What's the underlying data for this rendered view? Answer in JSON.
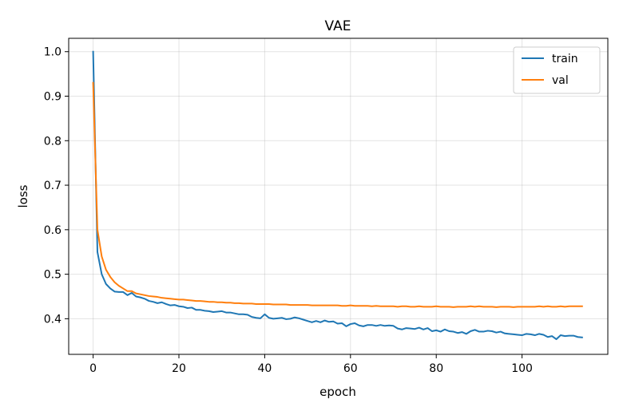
{
  "chart_data": {
    "type": "line",
    "title": "VAE",
    "xlabel": "epoch",
    "ylabel": "loss",
    "xlim": [
      -5.7,
      120
    ],
    "ylim": [
      0.32,
      1.03
    ],
    "xticks": [
      0,
      20,
      40,
      60,
      80,
      100
    ],
    "yticks": [
      0.4,
      0.5,
      0.6,
      0.7,
      0.8,
      0.9,
      1.0
    ],
    "grid": true,
    "legend_position": "top-right",
    "series": [
      {
        "name": "train",
        "color": "#1f77b4",
        "x": [
          0,
          1,
          2,
          3,
          4,
          5,
          6,
          7,
          8,
          9,
          10,
          11,
          12,
          13,
          14,
          15,
          16,
          17,
          18,
          19,
          20,
          21,
          22,
          23,
          24,
          25,
          26,
          27,
          28,
          29,
          30,
          31,
          32,
          33,
          34,
          35,
          36,
          37,
          38,
          39,
          40,
          41,
          42,
          43,
          44,
          45,
          46,
          47,
          48,
          49,
          50,
          51,
          52,
          53,
          54,
          55,
          56,
          57,
          58,
          59,
          60,
          61,
          62,
          63,
          64,
          65,
          66,
          67,
          68,
          69,
          70,
          71,
          72,
          73,
          74,
          75,
          76,
          77,
          78,
          79,
          80,
          81,
          82,
          83,
          84,
          85,
          86,
          87,
          88,
          89,
          90,
          91,
          92,
          93,
          94,
          95,
          96,
          97,
          98,
          99,
          100,
          101,
          102,
          103,
          104,
          105,
          106,
          107,
          108,
          109,
          110,
          111,
          112,
          113,
          114
        ],
        "values": [
          1.0,
          0.55,
          0.5,
          0.478,
          0.468,
          0.461,
          0.46,
          0.46,
          0.453,
          0.458,
          0.45,
          0.448,
          0.445,
          0.44,
          0.438,
          0.435,
          0.437,
          0.433,
          0.43,
          0.431,
          0.428,
          0.427,
          0.424,
          0.425,
          0.42,
          0.42,
          0.418,
          0.417,
          0.415,
          0.416,
          0.417,
          0.414,
          0.414,
          0.412,
          0.41,
          0.41,
          0.409,
          0.404,
          0.402,
          0.401,
          0.41,
          0.402,
          0.4,
          0.401,
          0.402,
          0.399,
          0.4,
          0.403,
          0.401,
          0.398,
          0.395,
          0.392,
          0.395,
          0.392,
          0.396,
          0.393,
          0.394,
          0.389,
          0.39,
          0.383,
          0.388,
          0.39,
          0.385,
          0.383,
          0.386,
          0.386,
          0.384,
          0.386,
          0.384,
          0.385,
          0.384,
          0.378,
          0.376,
          0.379,
          0.378,
          0.377,
          0.38,
          0.376,
          0.379,
          0.372,
          0.374,
          0.371,
          0.376,
          0.372,
          0.371,
          0.368,
          0.37,
          0.366,
          0.372,
          0.375,
          0.371,
          0.371,
          0.373,
          0.372,
          0.369,
          0.371,
          0.367,
          0.366,
          0.365,
          0.364,
          0.363,
          0.366,
          0.365,
          0.363,
          0.366,
          0.364,
          0.359,
          0.361,
          0.354,
          0.363,
          0.361,
          0.362,
          0.362,
          0.359,
          0.358
        ]
      },
      {
        "name": "val",
        "color": "#ff7f0e",
        "x": [
          0,
          1,
          2,
          3,
          4,
          5,
          6,
          7,
          8,
          9,
          10,
          11,
          12,
          13,
          14,
          15,
          16,
          17,
          18,
          19,
          20,
          21,
          22,
          23,
          24,
          25,
          26,
          27,
          28,
          29,
          30,
          31,
          32,
          33,
          34,
          35,
          36,
          37,
          38,
          39,
          40,
          41,
          42,
          43,
          44,
          45,
          46,
          47,
          48,
          49,
          50,
          51,
          52,
          53,
          54,
          55,
          56,
          57,
          58,
          59,
          60,
          61,
          62,
          63,
          64,
          65,
          66,
          67,
          68,
          69,
          70,
          71,
          72,
          73,
          74,
          75,
          76,
          77,
          78,
          79,
          80,
          81,
          82,
          83,
          84,
          85,
          86,
          87,
          88,
          89,
          90,
          91,
          92,
          93,
          94,
          95,
          96,
          97,
          98,
          99,
          100,
          101,
          102,
          103,
          104,
          105,
          106,
          107,
          108,
          109,
          110,
          111,
          112,
          113,
          114
        ],
        "values": [
          0.93,
          0.6,
          0.54,
          0.51,
          0.494,
          0.482,
          0.474,
          0.468,
          0.462,
          0.462,
          0.457,
          0.455,
          0.453,
          0.451,
          0.45,
          0.449,
          0.447,
          0.446,
          0.445,
          0.444,
          0.443,
          0.443,
          0.442,
          0.441,
          0.44,
          0.44,
          0.439,
          0.438,
          0.438,
          0.437,
          0.437,
          0.436,
          0.436,
          0.435,
          0.435,
          0.434,
          0.434,
          0.434,
          0.433,
          0.433,
          0.433,
          0.433,
          0.432,
          0.432,
          0.432,
          0.432,
          0.431,
          0.431,
          0.431,
          0.431,
          0.431,
          0.43,
          0.43,
          0.43,
          0.43,
          0.43,
          0.43,
          0.43,
          0.429,
          0.429,
          0.43,
          0.429,
          0.429,
          0.429,
          0.429,
          0.428,
          0.429,
          0.428,
          0.428,
          0.428,
          0.428,
          0.427,
          0.428,
          0.428,
          0.427,
          0.427,
          0.428,
          0.427,
          0.427,
          0.427,
          0.428,
          0.427,
          0.427,
          0.427,
          0.426,
          0.427,
          0.427,
          0.427,
          0.428,
          0.427,
          0.428,
          0.427,
          0.427,
          0.427,
          0.426,
          0.427,
          0.427,
          0.427,
          0.426,
          0.427,
          0.427,
          0.427,
          0.427,
          0.427,
          0.428,
          0.427,
          0.428,
          0.427,
          0.427,
          0.428,
          0.427,
          0.428,
          0.428,
          0.428,
          0.428
        ]
      }
    ]
  }
}
